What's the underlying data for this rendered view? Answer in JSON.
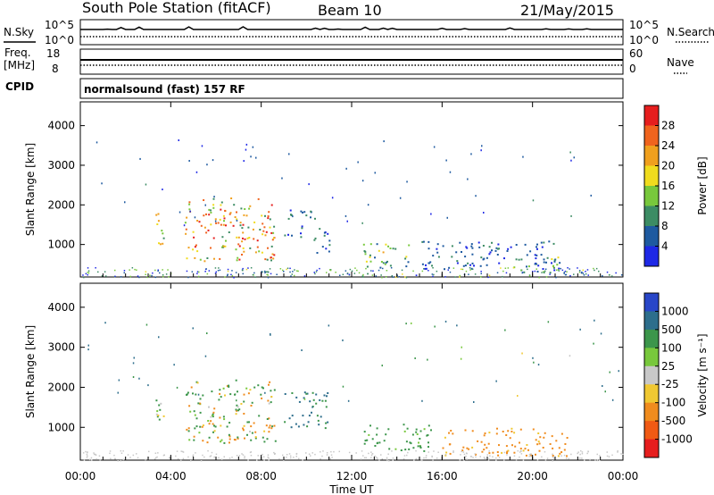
{
  "header": {
    "station": "South Pole Station (fitACF)",
    "beam": "Beam 10",
    "date": "21/May/2015"
  },
  "panels": {
    "nsky_label": "N.Sky",
    "nsky_ticks": [
      "10^5",
      "10^0"
    ],
    "nsearch_ticks": [
      "10^5",
      "10^0"
    ],
    "nsearch_label": "N.Search",
    "freq_label": "Freq.",
    "freq_unit": "[MHz]",
    "freq_ticks": [
      "18",
      "8"
    ],
    "nave_ticks": [
      "60",
      "0"
    ],
    "nave_label": "Nave",
    "cpid_label": "CPID",
    "cpid_text": "normalsound (fast) 157 RF"
  },
  "chart_data": [
    {
      "type": "heatmap",
      "name": "power",
      "xlabel": "Time UT",
      "ylabel": "Slant Range [km]",
      "x_ticks": [
        "00:00",
        "04:00",
        "08:00",
        "12:00",
        "16:00",
        "20:00",
        "00:00"
      ],
      "x_range_hours": [
        0,
        24
      ],
      "ylim": [
        180,
        4600
      ],
      "y_ticks": [
        1000,
        2000,
        3000,
        4000
      ],
      "colorbar": {
        "label": "Power [dB]",
        "ticks": [
          "4",
          "8",
          "12",
          "16",
          "20",
          "24",
          "28"
        ],
        "range": [
          0,
          30
        ],
        "colors": [
          "#1e28e6",
          "#1e5aa0",
          "#3c8c64",
          "#78c83c",
          "#f0dc1e",
          "#f0a01e",
          "#f0641e",
          "#e61e1e"
        ]
      },
      "regions": [
        {
          "t": [
            3.3,
            3.8
          ],
          "r": [
            1000,
            1900
          ],
          "v": [
            10,
            24
          ]
        },
        {
          "t": [
            4.6,
            8.6
          ],
          "r": [
            600,
            2200
          ],
          "v": [
            8,
            30
          ]
        },
        {
          "t": [
            9.0,
            10.2
          ],
          "r": [
            1200,
            1900
          ],
          "v": [
            2,
            12
          ]
        },
        {
          "t": [
            10.3,
            11.0
          ],
          "r": [
            800,
            1700
          ],
          "v": [
            2,
            10
          ]
        },
        {
          "t": [
            12.5,
            14.5
          ],
          "r": [
            400,
            1100
          ],
          "v": [
            4,
            20
          ]
        },
        {
          "t": [
            15.0,
            21.0
          ],
          "r": [
            400,
            1100
          ],
          "v": [
            2,
            10
          ]
        },
        {
          "t": [
            19.0,
            21.5
          ],
          "r": [
            300,
            700
          ],
          "v": [
            2,
            16
          ]
        }
      ]
    },
    {
      "type": "heatmap",
      "name": "velocity",
      "xlabel": "Time UT",
      "ylabel": "Slant Range [km]",
      "x_ticks": [
        "00:00",
        "04:00",
        "08:00",
        "12:00",
        "16:00",
        "20:00",
        "00:00"
      ],
      "x_range_hours": [
        0,
        24
      ],
      "ylim": [
        180,
        4600
      ],
      "y_ticks": [
        1000,
        2000,
        3000,
        4000
      ],
      "colorbar": {
        "label": "Velocity [m s^-1]",
        "ticks": [
          "1000",
          "500",
          "100",
          "25",
          "-25",
          "-100",
          "-500",
          "-1000"
        ],
        "colors": [
          "#2846c8",
          "#2d6e8c",
          "#3c964b",
          "#78c83c",
          "#c8c8c8",
          "#f0c832",
          "#f08c1e",
          "#f05a14",
          "#e61e1e"
        ]
      },
      "regions": [
        {
          "t": [
            3.3,
            3.8
          ],
          "r": [
            1000,
            1900
          ],
          "v": [
            -100,
            500
          ]
        },
        {
          "t": [
            4.6,
            8.6
          ],
          "r": [
            600,
            2200
          ],
          "v": [
            -500,
            500
          ]
        },
        {
          "t": [
            9.0,
            11.0
          ],
          "r": [
            1000,
            1900
          ],
          "v": [
            100,
            1000
          ]
        },
        {
          "t": [
            12.5,
            15.5
          ],
          "r": [
            400,
            1100
          ],
          "v": [
            25,
            500
          ]
        },
        {
          "t": [
            16.0,
            21.5
          ],
          "r": [
            300,
            1000
          ],
          "v": [
            -500,
            -25
          ]
        }
      ]
    }
  ]
}
